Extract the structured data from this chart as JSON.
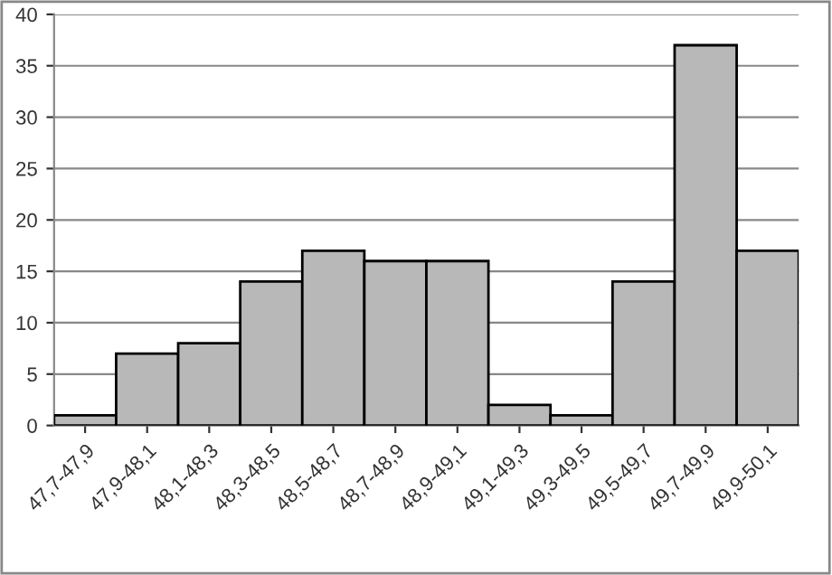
{
  "chart_data": {
    "type": "bar",
    "categories": [
      "47,7-47,9",
      "47,9-48,1",
      "48,1-48,3",
      "48,3-48,5",
      "48,5-48,7",
      "48,7-48,9",
      "48,9-49,1",
      "49,1-49,3",
      "49,3-49,5",
      "49,5-49,7",
      "49,7-49,9",
      "49,9-50,1"
    ],
    "values": [
      1,
      7,
      8,
      14,
      17,
      16,
      16,
      2,
      1,
      14,
      37,
      17
    ],
    "color": "#b8b8b8",
    "ylim": [
      0,
      40
    ],
    "yticks": [
      0,
      5,
      10,
      15,
      20,
      25,
      30,
      35,
      40
    ],
    "grid": "y",
    "legend": false
  }
}
